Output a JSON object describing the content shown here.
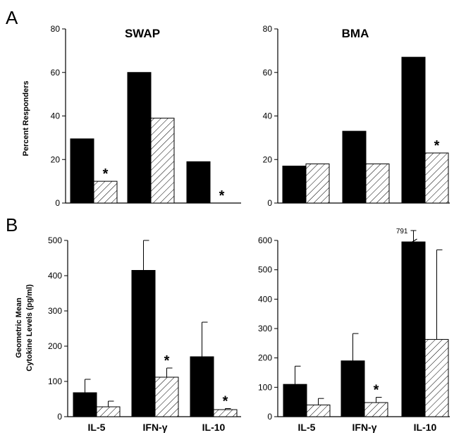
{
  "panel_labels": [
    "A",
    "B"
  ],
  "chart_data": [
    {
      "type": "bar",
      "title": "SWAP",
      "panel": "A",
      "ylabel": "Percent Responders",
      "xlabel": "",
      "categories": [
        "IL-5",
        "IFN-γ",
        "IL-10"
      ],
      "ylim": [
        0,
        80
      ],
      "yticks": [
        0,
        20,
        40,
        60,
        80
      ],
      "grid": false,
      "series": [
        {
          "values": [
            29.5,
            60,
            19
          ],
          "fill": "solid",
          "color": "#000000"
        },
        {
          "values": [
            10,
            39,
            0
          ],
          "fill": "hatched",
          "color": "#ffffff"
        }
      ],
      "significant_hatched": [
        true,
        false,
        true
      ],
      "significance_marker": "*"
    },
    {
      "type": "bar",
      "title": "BMA",
      "panel": "A",
      "ylabel": "",
      "xlabel": "",
      "categories": [
        "IL-5",
        "IFN-γ",
        "IL-10"
      ],
      "ylim": [
        0,
        80
      ],
      "yticks": [
        0,
        20,
        40,
        60,
        80
      ],
      "grid": false,
      "series": [
        {
          "values": [
            17,
            33,
            67
          ],
          "fill": "solid",
          "color": "#000000"
        },
        {
          "values": [
            18,
            18,
            23
          ],
          "fill": "hatched",
          "color": "#ffffff"
        }
      ],
      "significant_hatched": [
        false,
        false,
        true
      ],
      "significance_marker": "*"
    },
    {
      "type": "bar",
      "title": "",
      "panel": "B",
      "ylabel": "Geometric Mean Cytokine Levels (pg/ml)",
      "ylabel_lines": [
        "Geometric Mean",
        "Cytokine Levels  (pg/ml)"
      ],
      "xlabel": "",
      "categories": [
        "IL-5",
        "IFN-γ",
        "IL-10"
      ],
      "ylim": [
        0,
        500
      ],
      "yticks": [
        0,
        100,
        200,
        300,
        400,
        500
      ],
      "grid": false,
      "series": [
        {
          "values": [
            68,
            415,
            170
          ],
          "errors_upper": [
            106,
            540,
            268
          ],
          "fill": "solid",
          "color": "#000000"
        },
        {
          "values": [
            28,
            112,
            20
          ],
          "errors_upper": [
            44,
            138,
            23
          ],
          "fill": "hatched",
          "color": "#ffffff"
        }
      ],
      "significant_hatched": [
        false,
        true,
        true
      ],
      "significance_marker": "*"
    },
    {
      "type": "bar",
      "title": "",
      "panel": "B",
      "ylabel": "",
      "xlabel": "",
      "categories": [
        "IL-5",
        "IFN-γ",
        "IL-10"
      ],
      "ylim": [
        0,
        600
      ],
      "yticks": [
        0,
        100,
        200,
        300,
        400,
        500,
        600
      ],
      "grid": false,
      "series": [
        {
          "values": [
            110,
            190,
            595
          ],
          "errors_upper": [
            172,
            283,
            791
          ],
          "fill": "solid",
          "color": "#000000"
        },
        {
          "values": [
            40,
            48,
            263
          ],
          "errors_upper": [
            62,
            66,
            568
          ],
          "fill": "hatched",
          "color": "#ffffff"
        }
      ],
      "significant_hatched": [
        false,
        true,
        false
      ],
      "significance_marker": "*",
      "axis_break": {
        "category": "IL-10",
        "label": "791"
      }
    }
  ]
}
